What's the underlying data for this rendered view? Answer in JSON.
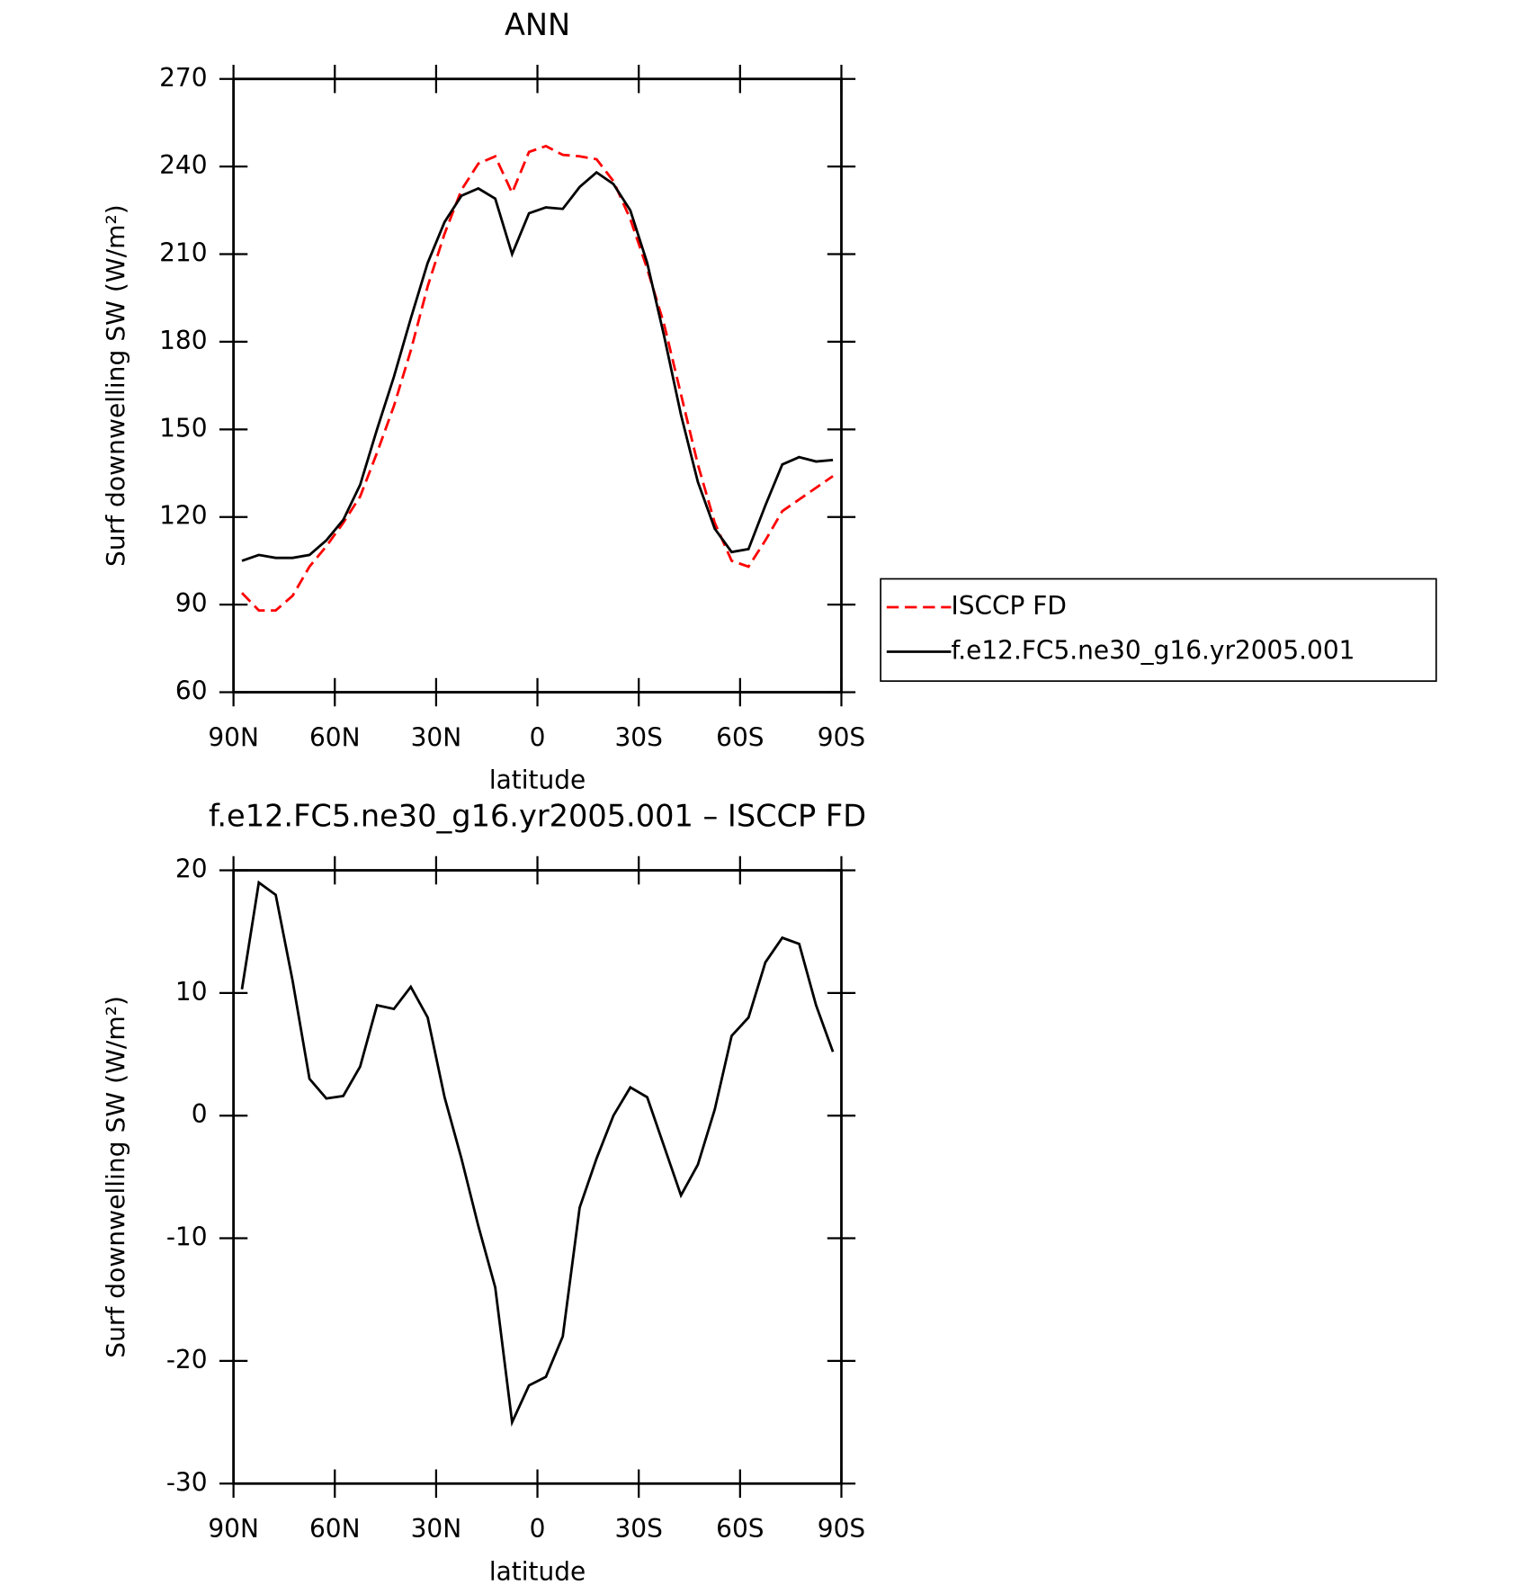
{
  "chart_data": [
    {
      "type": "line",
      "title": "ANN",
      "xlabel": "latitude",
      "ylabel": "Surf downwelling SW (W/m²)",
      "x": [
        87.5,
        82.5,
        77.5,
        72.5,
        67.5,
        62.5,
        57.5,
        52.5,
        47.5,
        42.5,
        37.5,
        32.5,
        27.5,
        22.5,
        17.5,
        12.5,
        7.5,
        2.5,
        -2.5,
        -7.5,
        -12.5,
        -17.5,
        -22.5,
        -27.5,
        -32.5,
        -37.5,
        -42.5,
        -47.5,
        -52.5,
        -57.5,
        -62.5,
        -67.5,
        -72.5,
        -77.5,
        -82.5,
        -87.5
      ],
      "series": [
        {
          "name": "ISCCP FD",
          "color": "#ff0000",
          "style": "dashed",
          "values": [
            94,
            88,
            88,
            93,
            103,
            110,
            118,
            127,
            142,
            158,
            177,
            199,
            217,
            232,
            241,
            243.5,
            231,
            245,
            247,
            244,
            243.5,
            242.5,
            235,
            222,
            205,
            186,
            162,
            138,
            118,
            105,
            103,
            112,
            122,
            126,
            130,
            134
          ]
        },
        {
          "name": "f.e12.FC5.ne30_g16.yr2005.001",
          "color": "#000000",
          "style": "solid",
          "values": [
            105,
            107,
            106,
            106,
            107,
            112,
            119,
            131,
            150,
            168,
            188,
            207,
            221,
            230,
            232.5,
            229,
            210,
            224,
            226,
            225.5,
            233,
            238,
            234,
            225,
            207,
            182,
            155,
            132,
            116,
            108,
            109,
            124,
            138,
            140.5,
            139,
            139.5
          ]
        }
      ],
      "xlim": [
        90,
        -90
      ],
      "xticks": [
        {
          "value": 90,
          "label": "90N"
        },
        {
          "value": 60,
          "label": "60N"
        },
        {
          "value": 30,
          "label": "30N"
        },
        0,
        {
          "value": -30,
          "label": "30S"
        },
        {
          "value": -60,
          "label": "60S"
        },
        {
          "value": -90,
          "label": "90S"
        }
      ],
      "ylim": [
        60,
        270
      ],
      "yticks": [
        60,
        90,
        120,
        150,
        180,
        210,
        240,
        270
      ],
      "legend": "right"
    },
    {
      "type": "line",
      "title": "f.e12.FC5.ne30_g16.yr2005.001 – ISCCP FD",
      "xlabel": "latitude",
      "ylabel": "Surf downwelling SW (W/m²)",
      "x": [
        87.5,
        82.5,
        77.5,
        72.5,
        67.5,
        62.5,
        57.5,
        52.5,
        47.5,
        42.5,
        37.5,
        32.5,
        27.5,
        22.5,
        17.5,
        12.5,
        7.5,
        2.5,
        -2.5,
        -7.5,
        -12.5,
        -17.5,
        -22.5,
        -27.5,
        -32.5,
        -37.5,
        -42.5,
        -47.5,
        -52.5,
        -57.5,
        -62.5,
        -67.5,
        -72.5,
        -77.5,
        -82.5,
        -87.5
      ],
      "series": [
        {
          "color": "#000000",
          "style": "solid",
          "values": [
            10.3,
            19,
            18,
            11,
            3,
            1.4,
            1.6,
            4,
            9,
            8.7,
            10.5,
            8,
            1.5,
            -3.5,
            -9,
            -14,
            -25,
            -22,
            -21.3,
            -18,
            -7.5,
            -3.5,
            0,
            2.3,
            1.5,
            -2.5,
            -6.5,
            -4,
            0.5,
            6.5,
            8,
            12.5,
            14.5,
            14,
            9,
            5.2
          ]
        }
      ],
      "xlim": [
        90,
        -90
      ],
      "xticks": [
        {
          "value": 90,
          "label": "90N"
        },
        {
          "value": 60,
          "label": "60N"
        },
        {
          "value": 30,
          "label": "30N"
        },
        0,
        {
          "value": -30,
          "label": "30S"
        },
        {
          "value": -60,
          "label": "60S"
        },
        {
          "value": -90,
          "label": "90S"
        }
      ],
      "ylim": [
        -30,
        20
      ],
      "yticks": [
        -30,
        -20,
        -10,
        0,
        10,
        20
      ]
    }
  ]
}
